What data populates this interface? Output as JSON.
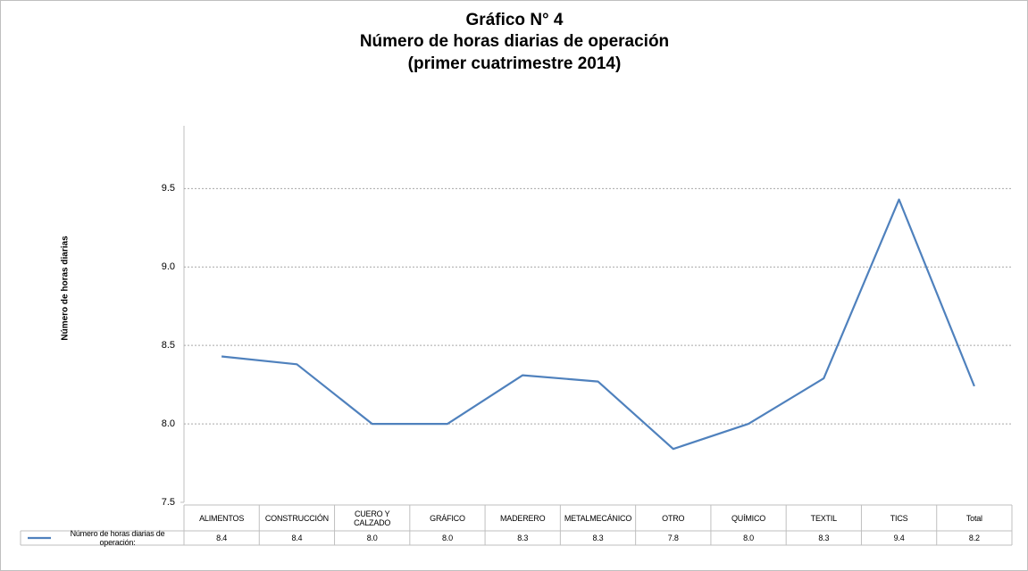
{
  "chart_data": {
    "type": "line",
    "title": [
      "Gráfico N° 4",
      "Número de horas diarias de operación",
      "(primer cuatrimestre 2014)"
    ],
    "ylabel": "Número de horas diarias",
    "categories": [
      "ALIMENTOS",
      "CONSTRUCCIÓN",
      "CUERO Y CALZADO",
      "GRÁFICO",
      "MADERERO",
      "METALMECÁNICO",
      "OTRO",
      "QUÍMICO",
      "TEXTIL",
      "TICS",
      "Total"
    ],
    "series": [
      {
        "name": "Número de horas diarias de operación:",
        "color": "#4f81bd",
        "values": [
          8.43,
          8.38,
          8.0,
          8.0,
          8.31,
          8.27,
          7.84,
          8.0,
          8.29,
          9.43,
          8.24
        ],
        "value_labels": [
          "8.4",
          "8.4",
          "8.0",
          "8.0",
          "8.3",
          "8.3",
          "7.8",
          "8.0",
          "8.3",
          "9.4",
          "8.2"
        ]
      }
    ],
    "ylim": [
      7.5,
      9.9
    ],
    "yticks": [
      7.5,
      {
        "value": 8,
        "label": "8.0"
      },
      8.5,
      {
        "value": 9,
        "label": "9.0"
      },
      9.5
    ],
    "grid": true
  }
}
